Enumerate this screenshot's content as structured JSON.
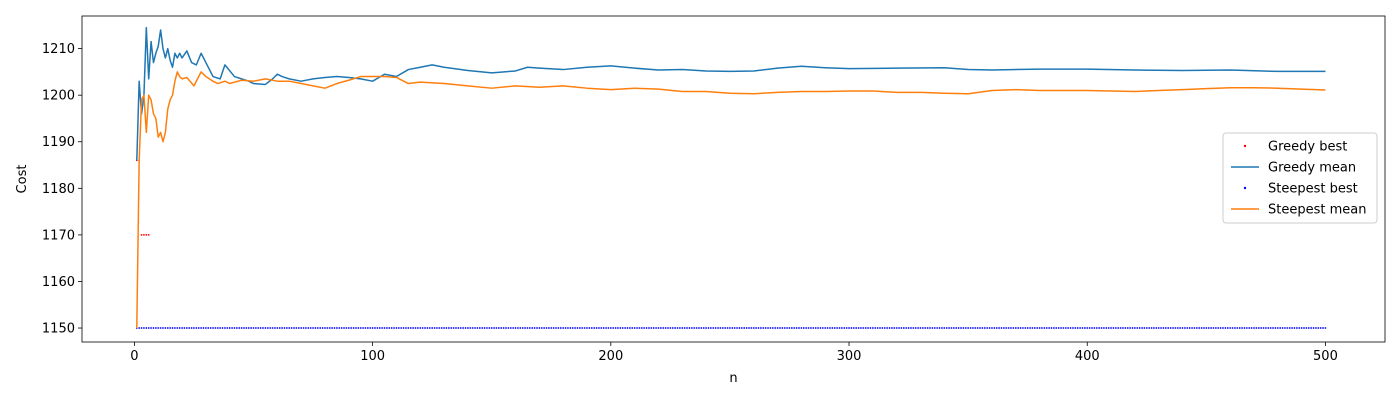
{
  "chart_data": {
    "type": "line",
    "xlabel": "n",
    "ylabel": "Cost",
    "xlim": [
      -22,
      525
    ],
    "ylim": [
      1147,
      1217
    ],
    "xticks": [
      0,
      100,
      200,
      300,
      400,
      500
    ],
    "yticks": [
      1150,
      1160,
      1170,
      1180,
      1190,
      1200,
      1210
    ],
    "grid": false,
    "legend_position": "center-right",
    "series": [
      {
        "name": "Greedy best",
        "style": "points",
        "color": "#ff0000",
        "points": [
          [
            1,
            1186
          ],
          [
            2,
            1186
          ],
          [
            3,
            1170
          ],
          [
            4,
            1170
          ],
          [
            5,
            1170
          ],
          [
            6,
            1170
          ]
        ]
      },
      {
        "name": "Greedy mean",
        "style": "line",
        "color": "#1f77b4",
        "points": [
          [
            1,
            1186
          ],
          [
            2,
            1203
          ],
          [
            3,
            1196
          ],
          [
            4,
            1200
          ],
          [
            5,
            1214.5
          ],
          [
            6,
            1203.5
          ],
          [
            7,
            1211.5
          ],
          [
            8,
            1207
          ],
          [
            9,
            1209
          ],
          [
            10,
            1210.5
          ],
          [
            11,
            1214
          ],
          [
            12,
            1210
          ],
          [
            13,
            1208
          ],
          [
            14,
            1210
          ],
          [
            15,
            1207.5
          ],
          [
            16,
            1206
          ],
          [
            17,
            1209
          ],
          [
            18,
            1208
          ],
          [
            19,
            1209
          ],
          [
            20,
            1208
          ],
          [
            22,
            1209.5
          ],
          [
            24,
            1207
          ],
          [
            26,
            1206.5
          ],
          [
            28,
            1209
          ],
          [
            30,
            1207
          ],
          [
            33,
            1204
          ],
          [
            36,
            1203.5
          ],
          [
            38,
            1206.5
          ],
          [
            42,
            1204
          ],
          [
            45,
            1203.5
          ],
          [
            48,
            1203
          ],
          [
            50,
            1202.5
          ],
          [
            55,
            1202.3
          ],
          [
            58,
            1203.5
          ],
          [
            60,
            1204.5
          ],
          [
            62,
            1204
          ],
          [
            65,
            1203.5
          ],
          [
            70,
            1203
          ],
          [
            75,
            1203.5
          ],
          [
            80,
            1203.8
          ],
          [
            85,
            1204
          ],
          [
            90,
            1203.8
          ],
          [
            95,
            1203.5
          ],
          [
            100,
            1203
          ],
          [
            105,
            1204.5
          ],
          [
            110,
            1204
          ],
          [
            115,
            1205.5
          ],
          [
            120,
            1206
          ],
          [
            125,
            1206.5
          ],
          [
            130,
            1206
          ],
          [
            140,
            1205.3
          ],
          [
            150,
            1204.8
          ],
          [
            160,
            1205.2
          ],
          [
            165,
            1206
          ],
          [
            170,
            1205.8
          ],
          [
            180,
            1205.5
          ],
          [
            190,
            1206
          ],
          [
            200,
            1206.3
          ],
          [
            210,
            1205.8
          ],
          [
            220,
            1205.4
          ],
          [
            230,
            1205.5
          ],
          [
            240,
            1205.2
          ],
          [
            250,
            1205.1
          ],
          [
            260,
            1205.2
          ],
          [
            270,
            1205.8
          ],
          [
            280,
            1206.2
          ],
          [
            290,
            1205.9
          ],
          [
            300,
            1205.7
          ],
          [
            320,
            1205.8
          ],
          [
            340,
            1205.9
          ],
          [
            350,
            1205.5
          ],
          [
            360,
            1205.4
          ],
          [
            380,
            1205.6
          ],
          [
            400,
            1205.6
          ],
          [
            420,
            1205.4
          ],
          [
            440,
            1205.3
          ],
          [
            460,
            1205.4
          ],
          [
            480,
            1205.1
          ],
          [
            500,
            1205.1
          ]
        ]
      },
      {
        "name": "Steepest best",
        "style": "points",
        "color": "#0000ff",
        "x_start": 1,
        "x_end": 500,
        "x_step": 1,
        "y": 1150
      },
      {
        "name": "Steepest mean",
        "style": "line",
        "color": "#ff7f0e",
        "points": [
          [
            1,
            1150
          ],
          [
            2,
            1186
          ],
          [
            3,
            1199
          ],
          [
            4,
            1200
          ],
          [
            5,
            1192
          ],
          [
            6,
            1200
          ],
          [
            7,
            1199
          ],
          [
            8,
            1196
          ],
          [
            9,
            1195
          ],
          [
            10,
            1191
          ],
          [
            11,
            1192
          ],
          [
            12,
            1190
          ],
          [
            13,
            1192
          ],
          [
            14,
            1197
          ],
          [
            15,
            1199
          ],
          [
            16,
            1200
          ],
          [
            17,
            1203
          ],
          [
            18,
            1205
          ],
          [
            19,
            1204
          ],
          [
            20,
            1203.5
          ],
          [
            22,
            1203.8
          ],
          [
            25,
            1202
          ],
          [
            28,
            1205
          ],
          [
            30,
            1204
          ],
          [
            33,
            1203
          ],
          [
            35,
            1202.5
          ],
          [
            38,
            1203
          ],
          [
            40,
            1202.5
          ],
          [
            45,
            1203.2
          ],
          [
            50,
            1203
          ],
          [
            55,
            1203.5
          ],
          [
            60,
            1203
          ],
          [
            65,
            1203
          ],
          [
            70,
            1202.5
          ],
          [
            75,
            1202
          ],
          [
            80,
            1201.5
          ],
          [
            85,
            1202.5
          ],
          [
            90,
            1203.2
          ],
          [
            95,
            1204
          ],
          [
            100,
            1204
          ],
          [
            105,
            1204
          ],
          [
            110,
            1203.8
          ],
          [
            115,
            1202.5
          ],
          [
            120,
            1202.8
          ],
          [
            130,
            1202.5
          ],
          [
            140,
            1202
          ],
          [
            150,
            1201.5
          ],
          [
            160,
            1202
          ],
          [
            170,
            1201.7
          ],
          [
            180,
            1202
          ],
          [
            190,
            1201.5
          ],
          [
            200,
            1201.2
          ],
          [
            210,
            1201.5
          ],
          [
            220,
            1201.3
          ],
          [
            230,
            1200.8
          ],
          [
            240,
            1200.8
          ],
          [
            250,
            1200.4
          ],
          [
            260,
            1200.3
          ],
          [
            270,
            1200.6
          ],
          [
            280,
            1200.8
          ],
          [
            290,
            1200.8
          ],
          [
            300,
            1200.9
          ],
          [
            310,
            1200.9
          ],
          [
            320,
            1200.6
          ],
          [
            330,
            1200.6
          ],
          [
            340,
            1200.4
          ],
          [
            350,
            1200.3
          ],
          [
            360,
            1201
          ],
          [
            370,
            1201.2
          ],
          [
            380,
            1201
          ],
          [
            390,
            1201
          ],
          [
            400,
            1201
          ],
          [
            410,
            1200.9
          ],
          [
            420,
            1200.8
          ],
          [
            430,
            1201
          ],
          [
            440,
            1201.2
          ],
          [
            450,
            1201.4
          ],
          [
            460,
            1201.6
          ],
          [
            470,
            1201.6
          ],
          [
            480,
            1201.5
          ],
          [
            490,
            1201.3
          ],
          [
            500,
            1201.1
          ]
        ]
      }
    ]
  }
}
